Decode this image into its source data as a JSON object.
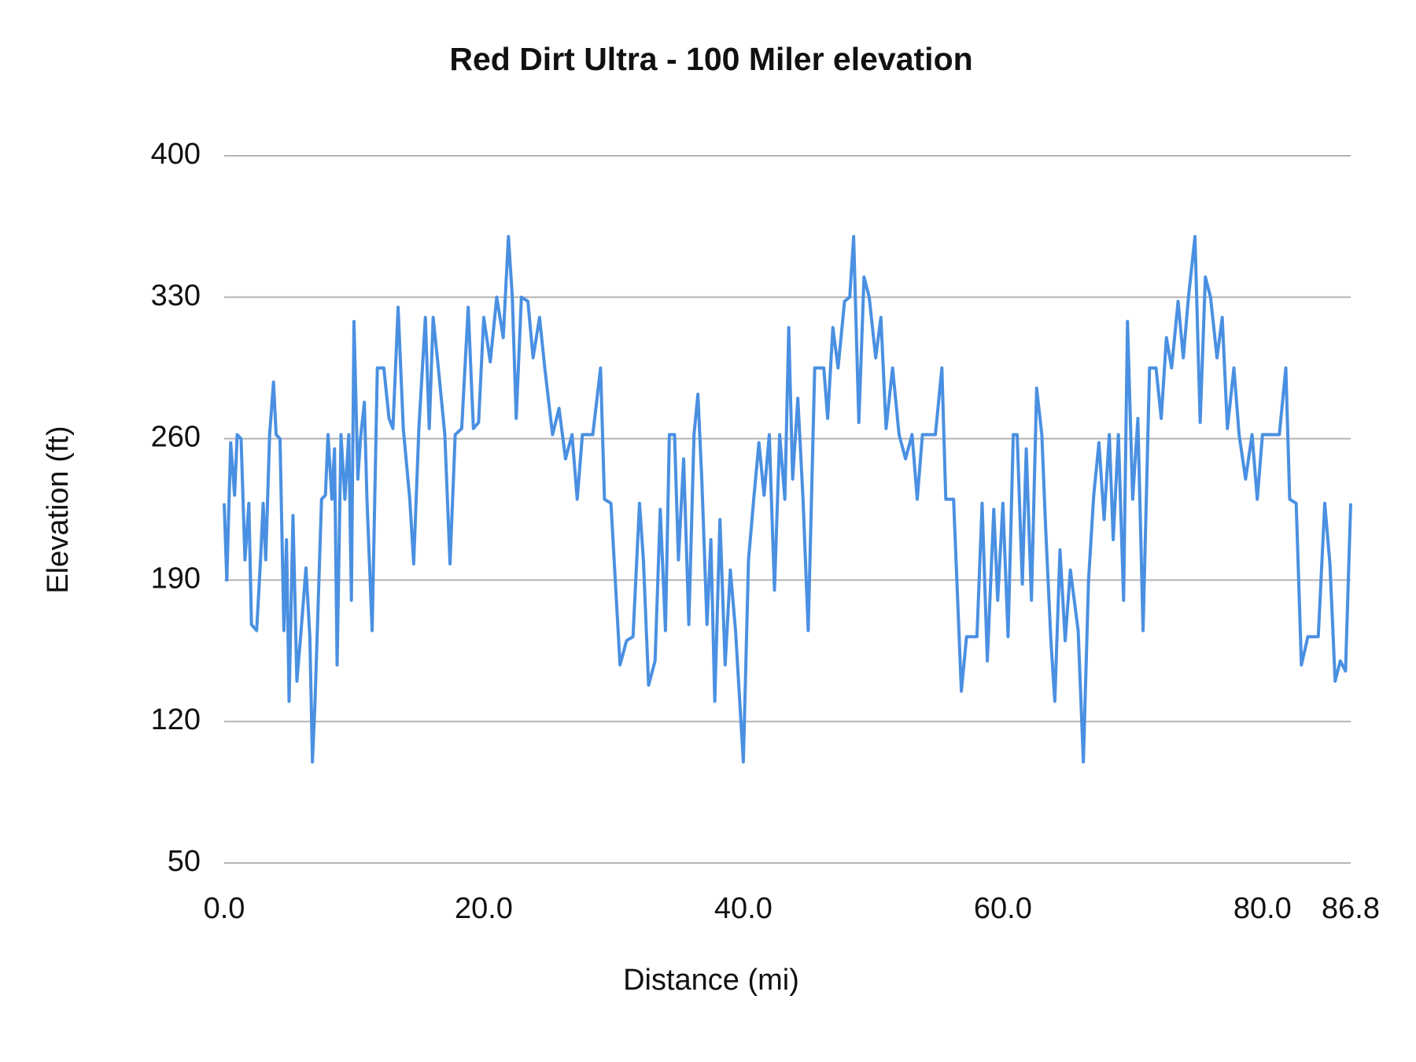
{
  "chart_data": {
    "type": "line",
    "title": "Red Dirt Ultra - 100 Miler elevation",
    "x_label": "Distance (mi)",
    "y_label": "Elevation (ft)",
    "xlim": [
      0,
      86.8
    ],
    "xticks": [
      {
        "value": 0,
        "label": "0.0"
      },
      {
        "value": 20,
        "label": "20.0"
      },
      {
        "value": 40,
        "label": "40.0"
      },
      {
        "value": 60,
        "label": "60.0"
      },
      {
        "value": 80,
        "label": "80.0"
      },
      86.8
    ],
    "ylim": [
      50,
      400
    ],
    "yticks": [
      50,
      120,
      190,
      260,
      330,
      400
    ],
    "grid": true,
    "series": [
      {
        "name": "Elevation",
        "color": "#4a90e2",
        "x": [
          0,
          0.2,
          0.5,
          0.8,
          1.0,
          1.3,
          1.6,
          1.9,
          2.1,
          2.5,
          2.8,
          3.0,
          3.2,
          3.5,
          3.8,
          4.0,
          4.3,
          4.6,
          4.8,
          5.0,
          5.3,
          5.6,
          5.9,
          6.3,
          6.6,
          6.8,
          7.0,
          7.5,
          7.8,
          8.0,
          8.3,
          8.5,
          8.7,
          9.0,
          9.3,
          9.6,
          9.8,
          10.0,
          10.3,
          10.5,
          10.8,
          11.0,
          11.4,
          11.8,
          12.3,
          12.7,
          13.0,
          13.4,
          13.8,
          14.3,
          14.6,
          15.0,
          15.5,
          15.8,
          16.1,
          16.5,
          17.0,
          17.4,
          17.8,
          18.3,
          18.8,
          19.2,
          19.6,
          20.0,
          20.5,
          21.0,
          21.5,
          21.9,
          22.2,
          22.5,
          22.9,
          23.4,
          23.8,
          24.3,
          24.7,
          25.3,
          25.8,
          26.3,
          26.8,
          27.2,
          27.6,
          28.4,
          29.0,
          29.3,
          29.8,
          30.5,
          31,
          31.5,
          32.0,
          32.3,
          32.7,
          33.2,
          33.6,
          34.0,
          34.3,
          34.7,
          35.0,
          35.4,
          35.8,
          36.2,
          36.5,
          36.8,
          37.2,
          37.5,
          37.8,
          38.2,
          38.6,
          39.0,
          39.4,
          40.0,
          40.4,
          40.8,
          41.2,
          41.6,
          42.0,
          42.4,
          42.8,
          43.2,
          43.5,
          43.8,
          44.2,
          44.6,
          45.0,
          45.5,
          46.2,
          46.5,
          46.9,
          47.3,
          47.8,
          48.2,
          48.5,
          48.9,
          49.3,
          49.7,
          50.2,
          50.6,
          51.0,
          51.5,
          52.0,
          52.5,
          53.0,
          53.4,
          53.8,
          54.8,
          55.3,
          55.6,
          56.2,
          56.8,
          57.2,
          58.0,
          58.4,
          58.8,
          59.3,
          59.6,
          60.0,
          60.4,
          60.8,
          61.1,
          61.5,
          61.8,
          62.2,
          62.6,
          63.0,
          63.3,
          63.7,
          64.0,
          64.4,
          64.8,
          65.2,
          65.8,
          66.2,
          66.6,
          67.0,
          67.4,
          67.8,
          68.2,
          68.5,
          68.9,
          69.3,
          69.6,
          70.0,
          70.4,
          70.8,
          71.3,
          71.8,
          72.2,
          72.6,
          73.0,
          73.5,
          73.9,
          74.3,
          74.8,
          75.2,
          75.6,
          76.0,
          76.5,
          76.9,
          77.3,
          77.8,
          78.2,
          78.7,
          79.2,
          79.6,
          80.0,
          81.3,
          81.8,
          82.1,
          82.6,
          83.0,
          83.5,
          84.3,
          84.8,
          85.2,
          85.6,
          86.0,
          86.4,
          86.8
        ],
        "values": [
          228,
          190,
          258,
          232,
          262,
          260,
          200,
          228,
          168,
          165,
          200,
          228,
          200,
          262,
          288,
          262,
          260,
          165,
          210,
          130,
          222,
          140,
          163,
          196,
          162,
          100,
          130,
          230,
          232,
          262,
          230,
          255,
          148,
          262,
          230,
          262,
          180,
          318,
          240,
          260,
          278,
          230,
          165,
          295,
          295,
          270,
          265,
          325,
          265,
          230,
          198,
          265,
          320,
          265,
          320,
          295,
          262,
          198,
          262,
          265,
          325,
          265,
          268,
          320,
          298,
          330,
          310,
          360,
          330,
          270,
          330,
          328,
          300,
          320,
          295,
          262,
          275,
          250,
          262,
          230,
          262,
          262,
          295,
          230,
          228,
          148,
          160,
          162,
          228,
          200,
          138,
          150,
          225,
          165,
          262,
          262,
          200,
          250,
          168,
          262,
          282,
          240,
          168,
          210,
          130,
          220,
          148,
          195,
          165,
          100,
          200,
          230,
          258,
          232,
          262,
          185,
          262,
          230,
          315,
          240,
          280,
          230,
          165,
          295,
          295,
          270,
          315,
          295,
          328,
          330,
          360,
          268,
          340,
          330,
          300,
          320,
          265,
          295,
          262,
          250,
          262,
          230,
          262,
          262,
          295,
          230,
          230,
          135,
          162,
          162,
          228,
          150,
          225,
          180,
          228,
          162,
          262,
          262,
          188,
          255,
          180,
          285,
          262,
          215,
          160,
          130,
          205,
          160,
          195,
          165,
          100,
          190,
          232,
          258,
          220,
          262,
          210,
          262,
          180,
          318,
          230,
          270,
          165,
          295,
          295,
          270,
          310,
          295,
          328,
          300,
          330,
          360,
          268,
          340,
          330,
          300,
          320,
          265,
          295,
          262,
          240,
          262,
          230,
          262,
          262,
          295,
          230,
          228,
          148,
          162,
          162,
          228,
          198,
          140,
          150,
          145,
          228
        ]
      }
    ]
  }
}
